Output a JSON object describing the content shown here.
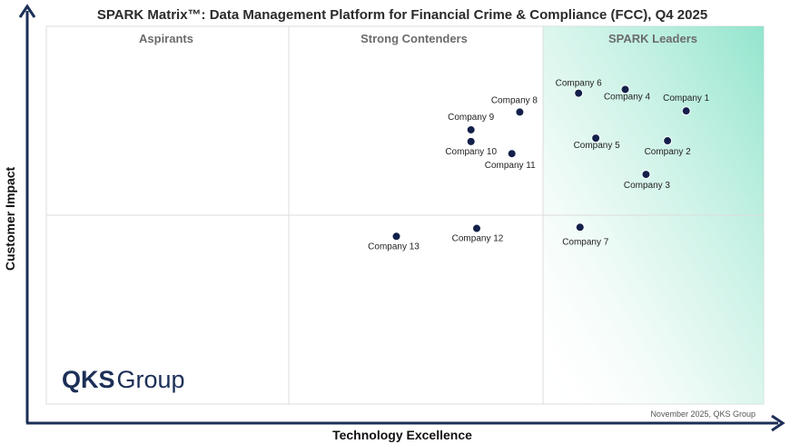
{
  "chart_data": {
    "type": "scatter",
    "title": "SPARK Matrix™: Data Management Platform for Financial Crime & Compliance (FCC), Q4 2025",
    "xlabel": "Technology Excellence",
    "ylabel": "Customer Impact",
    "quadrants": [
      "Aspirants",
      "Strong Contenders",
      "SPARK Leaders"
    ],
    "grid": false,
    "points": [
      {
        "label": "Company 1",
        "x": 89.2,
        "y": 77.6
      },
      {
        "label": "Company 2",
        "x": 86.6,
        "y": 69.7
      },
      {
        "label": "Company 3",
        "x": 83.6,
        "y": 60.8
      },
      {
        "label": "Company 4",
        "x": 80.7,
        "y": 83.3
      },
      {
        "label": "Company 5",
        "x": 76.6,
        "y": 70.4
      },
      {
        "label": "Company 6",
        "x": 74.2,
        "y": 82.3
      },
      {
        "label": "Company 7",
        "x": 74.4,
        "y": 46.8
      },
      {
        "label": "Company 8",
        "x": 66.0,
        "y": 77.3
      },
      {
        "label": "Company 9",
        "x": 59.2,
        "y": 72.6
      },
      {
        "label": "Company 10",
        "x": 59.2,
        "y": 69.5
      },
      {
        "label": "Company 11",
        "x": 64.9,
        "y": 66.3
      },
      {
        "label": "Company 12",
        "x": 60.0,
        "y": 46.5
      },
      {
        "label": "Company 13",
        "x": 48.8,
        "y": 44.4
      }
    ]
  },
  "branding": {
    "logo_qks": "QKS",
    "logo_group": "Group",
    "footer": "November 2025, QKS Group"
  },
  "colors": {
    "axis": "#1c2f57",
    "point": "#13204a",
    "leader_gradient_start": "#7fe0c4",
    "leader_gradient_end": "#ffffff",
    "quadrant_border": "#dcdcdc"
  }
}
